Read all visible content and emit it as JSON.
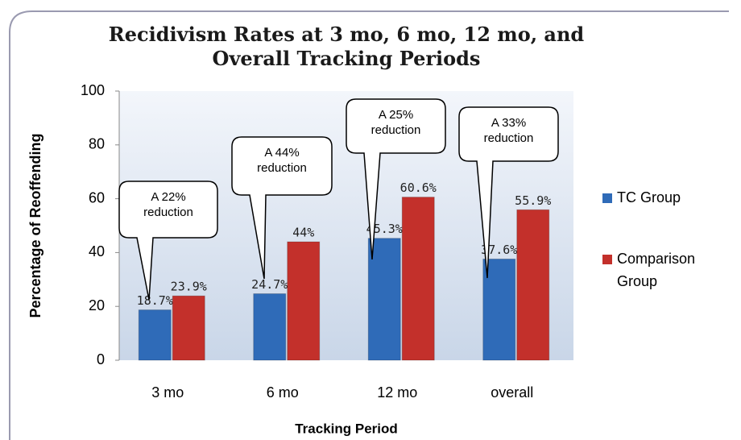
{
  "chart_data": {
    "type": "bar",
    "title": "Recidivism Rates at 3 mo, 6 mo, 12 mo, and Overall Tracking Periods",
    "x_label": "Tracking Period",
    "y_label": "Percentage of Reoffending",
    "categories": [
      "3 mo",
      "6 mo",
      "12 mo",
      "overall"
    ],
    "series": [
      {
        "name": "TC Group",
        "color": "#2f6bb8",
        "values": [
          18.7,
          24.7,
          45.3,
          37.6
        ],
        "value_labels": [
          "18.7%",
          "24.7%",
          "45.3%",
          "37.6%"
        ]
      },
      {
        "name": "Comparison Group",
        "color": "#c3302b",
        "values": [
          23.9,
          44,
          60.6,
          55.9
        ],
        "value_labels": [
          "23.9%",
          "44%",
          "60.6%",
          "55.9%"
        ]
      }
    ],
    "annotations": [
      "A 22% reduction",
      "A 44% reduction",
      "A 25% reduction",
      "A 33% reduction"
    ],
    "ylim": [
      0,
      100
    ],
    "yticks": [
      0,
      20,
      40,
      60,
      80,
      100
    ],
    "legend": "right"
  }
}
